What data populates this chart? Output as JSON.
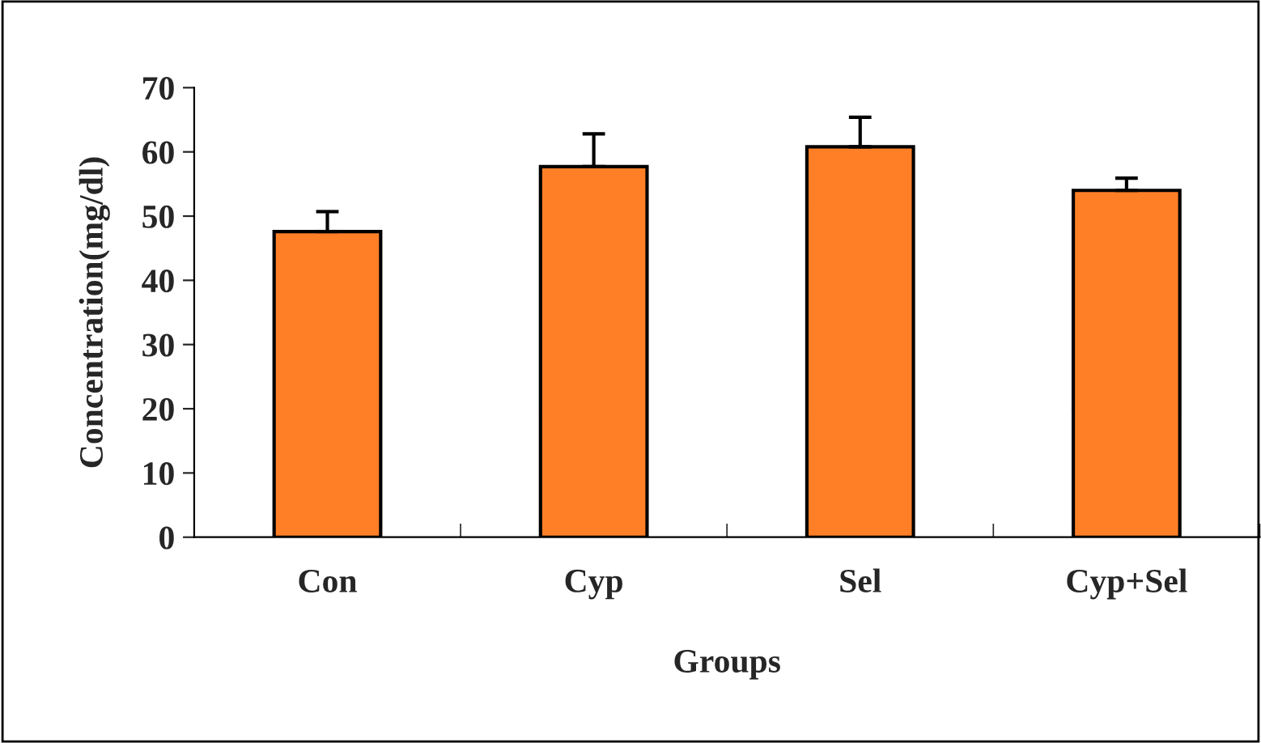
{
  "chart_data": {
    "type": "bar",
    "xlabel": "Groups",
    "ylabel": "Concentration(mg/dl)",
    "categories": [
      "Con",
      "Cyp",
      "Sel",
      "Cyp+Sel"
    ],
    "values": [
      47.6,
      57.7,
      60.8,
      54.0
    ],
    "errors": [
      [
        47.6,
        50.7
      ],
      [
        57.7,
        62.8
      ],
      [
        60.8,
        65.4
      ],
      [
        54.0,
        55.9
      ]
    ],
    "color": "#ff7f27",
    "ylim": [
      0,
      70
    ],
    "yticks": [
      0,
      10,
      20,
      30,
      40,
      50,
      60,
      70
    ],
    "grid": false
  }
}
